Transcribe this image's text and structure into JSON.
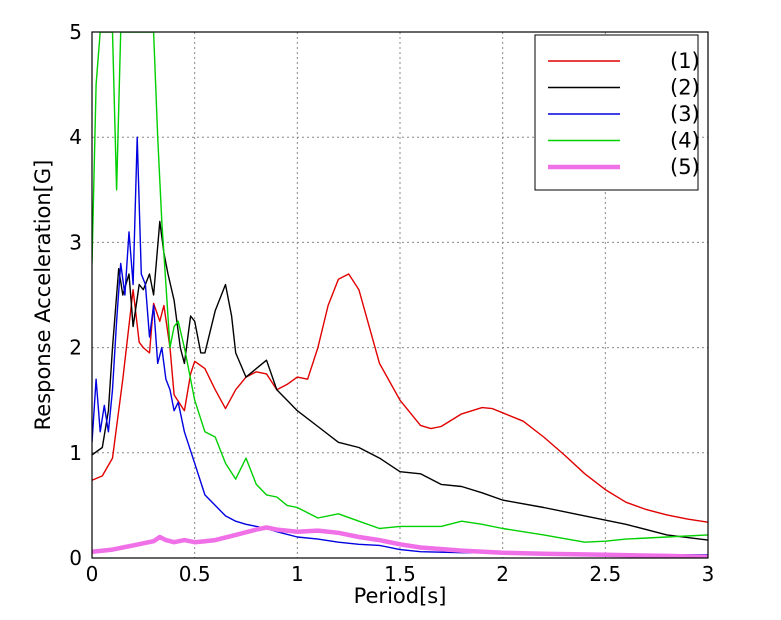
{
  "chart_data": {
    "type": "line",
    "title": "",
    "xlabel": "Period[s]",
    "ylabel": "Response Acceleration[G]",
    "xlim": [
      0,
      3
    ],
    "ylim": [
      0,
      5
    ],
    "xticks": [
      "0",
      "0.5",
      "1",
      "1.5",
      "2",
      "2.5",
      "3"
    ],
    "yticks": [
      "0",
      "1",
      "2",
      "3",
      "4",
      "5"
    ],
    "grid": true,
    "legend_position": "top-right",
    "series": [
      {
        "name": "(1)",
        "color": "#e00000",
        "x": [
          0,
          0.05,
          0.1,
          0.15,
          0.2,
          0.23,
          0.25,
          0.28,
          0.3,
          0.33,
          0.35,
          0.38,
          0.4,
          0.45,
          0.48,
          0.5,
          0.55,
          0.6,
          0.65,
          0.7,
          0.75,
          0.8,
          0.85,
          0.9,
          0.95,
          1.0,
          1.05,
          1.1,
          1.15,
          1.2,
          1.25,
          1.3,
          1.35,
          1.4,
          1.5,
          1.6,
          1.65,
          1.7,
          1.8,
          1.9,
          1.95,
          2.0,
          2.1,
          2.2,
          2.3,
          2.4,
          2.5,
          2.6,
          2.7,
          2.8,
          2.9,
          3.0
        ],
        "y": [
          0.74,
          0.78,
          0.95,
          1.7,
          2.55,
          2.05,
          2.0,
          1.95,
          2.42,
          2.25,
          2.4,
          2.0,
          1.55,
          1.4,
          1.75,
          1.87,
          1.8,
          1.6,
          1.42,
          1.6,
          1.72,
          1.77,
          1.75,
          1.6,
          1.65,
          1.72,
          1.7,
          2.0,
          2.4,
          2.65,
          2.7,
          2.55,
          2.2,
          1.85,
          1.5,
          1.26,
          1.23,
          1.25,
          1.37,
          1.43,
          1.42,
          1.38,
          1.3,
          1.15,
          0.98,
          0.8,
          0.65,
          0.53,
          0.46,
          0.41,
          0.37,
          0.34
        ]
      },
      {
        "name": "(2)",
        "color": "#000000",
        "x": [
          0,
          0.05,
          0.08,
          0.1,
          0.13,
          0.15,
          0.18,
          0.2,
          0.23,
          0.25,
          0.28,
          0.3,
          0.33,
          0.35,
          0.37,
          0.4,
          0.43,
          0.45,
          0.48,
          0.5,
          0.53,
          0.55,
          0.6,
          0.65,
          0.68,
          0.7,
          0.75,
          0.8,
          0.85,
          0.9,
          0.95,
          1.0,
          1.1,
          1.2,
          1.3,
          1.4,
          1.5,
          1.6,
          1.7,
          1.8,
          1.9,
          2.0,
          2.2,
          2.4,
          2.6,
          2.8,
          3.0
        ],
        "y": [
          0.98,
          1.05,
          1.4,
          2.0,
          2.75,
          2.5,
          2.7,
          2.2,
          2.6,
          2.55,
          2.7,
          2.5,
          3.2,
          2.9,
          2.7,
          2.45,
          2.0,
          1.85,
          2.3,
          2.25,
          1.95,
          1.95,
          2.35,
          2.6,
          2.3,
          1.95,
          1.72,
          1.8,
          1.88,
          1.6,
          1.5,
          1.4,
          1.25,
          1.1,
          1.05,
          0.95,
          0.82,
          0.8,
          0.7,
          0.68,
          0.62,
          0.55,
          0.48,
          0.4,
          0.32,
          0.22,
          0.17
        ]
      },
      {
        "name": "(3)",
        "color": "#0000e0",
        "x": [
          0,
          0.02,
          0.04,
          0.06,
          0.08,
          0.1,
          0.12,
          0.14,
          0.16,
          0.18,
          0.2,
          0.22,
          0.24,
          0.26,
          0.28,
          0.3,
          0.32,
          0.34,
          0.36,
          0.38,
          0.4,
          0.42,
          0.45,
          0.5,
          0.55,
          0.6,
          0.65,
          0.7,
          0.75,
          0.8,
          0.85,
          0.9,
          1.0,
          1.1,
          1.2,
          1.3,
          1.4,
          1.5,
          1.6,
          1.8,
          2.0,
          2.2,
          2.5,
          2.8,
          3.0
        ],
        "y": [
          1.1,
          1.7,
          1.2,
          1.45,
          1.2,
          1.6,
          2.25,
          2.8,
          2.5,
          3.1,
          2.6,
          4.0,
          2.7,
          2.6,
          2.1,
          2.4,
          1.85,
          2.0,
          1.7,
          1.6,
          1.4,
          1.48,
          1.2,
          0.9,
          0.6,
          0.5,
          0.4,
          0.35,
          0.32,
          0.3,
          0.28,
          0.25,
          0.2,
          0.18,
          0.15,
          0.13,
          0.12,
          0.08,
          0.06,
          0.05,
          0.05,
          0.04,
          0.04,
          0.03,
          0.03
        ]
      },
      {
        "name": "(4)",
        "color": "#00d000",
        "x": [
          0,
          0.02,
          0.04,
          0.06,
          0.08,
          0.1,
          0.12,
          0.14,
          0.16,
          0.18,
          0.2,
          0.22,
          0.25,
          0.28,
          0.3,
          0.32,
          0.34,
          0.36,
          0.38,
          0.4,
          0.42,
          0.45,
          0.5,
          0.55,
          0.6,
          0.65,
          0.7,
          0.75,
          0.8,
          0.85,
          0.9,
          0.95,
          1.0,
          1.1,
          1.2,
          1.3,
          1.4,
          1.5,
          1.6,
          1.7,
          1.8,
          1.9,
          2.0,
          2.2,
          2.4,
          2.5,
          2.6,
          2.8,
          3.0
        ],
        "y": [
          2.8,
          4.5,
          5.0,
          5.0,
          5.0,
          5.0,
          3.5,
          5.0,
          5.0,
          5.0,
          5.0,
          5.0,
          5.0,
          5.0,
          5.0,
          4.0,
          3.2,
          2.6,
          2.0,
          2.2,
          2.25,
          2.0,
          1.5,
          1.2,
          1.15,
          0.9,
          0.75,
          0.95,
          0.7,
          0.6,
          0.58,
          0.5,
          0.48,
          0.38,
          0.42,
          0.35,
          0.28,
          0.3,
          0.3,
          0.3,
          0.35,
          0.32,
          0.28,
          0.22,
          0.15,
          0.16,
          0.18,
          0.2,
          0.22
        ]
      },
      {
        "name": "(5)",
        "color": "#f070e8",
        "x": [
          0,
          0.1,
          0.2,
          0.3,
          0.33,
          0.36,
          0.4,
          0.45,
          0.5,
          0.55,
          0.6,
          0.7,
          0.8,
          0.85,
          0.9,
          1.0,
          1.1,
          1.2,
          1.3,
          1.4,
          1.5,
          1.6,
          1.8,
          2.0,
          2.2,
          2.5,
          2.8,
          3.0
        ],
        "y": [
          0.06,
          0.08,
          0.12,
          0.16,
          0.2,
          0.17,
          0.15,
          0.17,
          0.15,
          0.16,
          0.17,
          0.22,
          0.27,
          0.29,
          0.27,
          0.25,
          0.26,
          0.24,
          0.2,
          0.17,
          0.13,
          0.1,
          0.07,
          0.05,
          0.04,
          0.03,
          0.02,
          0.01
        ]
      }
    ]
  }
}
